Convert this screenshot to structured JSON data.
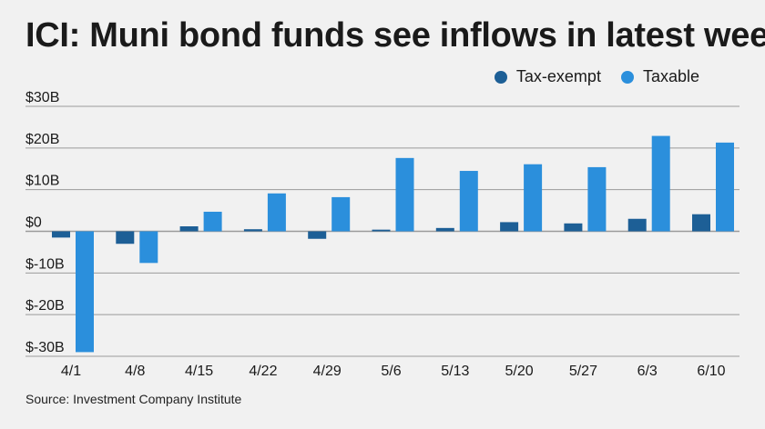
{
  "title": "ICI: Muni bond funds see inflows in latest week",
  "source": "Source: Investment Company Institute",
  "colors": {
    "tax_exempt": "#1d5f96",
    "taxable": "#2b8fdc",
    "grid": "#9a9a9a",
    "background": "#f1f1f1"
  },
  "chart_data": {
    "type": "bar",
    "title": "ICI: Muni bond funds see inflows in latest week",
    "categories": [
      "4/1",
      "4/8",
      "4/15",
      "4/22",
      "4/29",
      "5/6",
      "5/13",
      "5/20",
      "5/27",
      "6/3",
      "6/10"
    ],
    "series": [
      {
        "name": "Tax-exempt",
        "values": [
          -1.5,
          -3.0,
          1.2,
          0.5,
          -1.8,
          0.4,
          0.8,
          2.2,
          1.9,
          3.0,
          4.1
        ]
      },
      {
        "name": "Taxable",
        "values": [
          -29.0,
          -7.6,
          4.7,
          9.1,
          8.2,
          17.6,
          14.5,
          16.1,
          15.4,
          22.9,
          21.3
        ]
      }
    ],
    "ylim": [
      -30,
      30
    ],
    "yticks": [
      30,
      20,
      10,
      0,
      -10,
      -20,
      -30
    ],
    "ytick_labels": [
      "$30B",
      "$20B",
      "$10B",
      "$0",
      "$-10B",
      "$-20B",
      "$-30B"
    ],
    "grid": true,
    "legend_position": "top-right"
  }
}
